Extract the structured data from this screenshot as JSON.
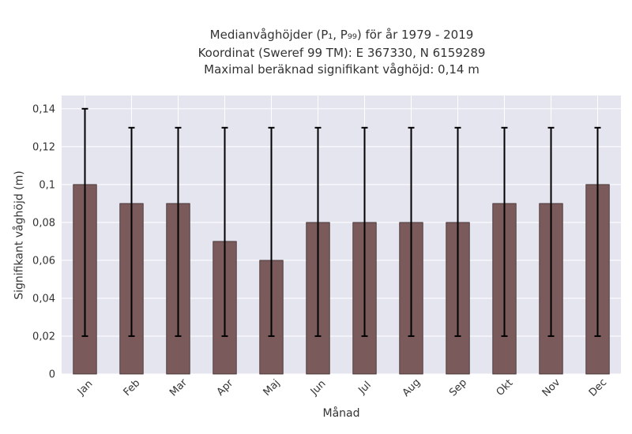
{
  "chart_data": {
    "type": "bar",
    "title_lines": [
      "Medianvåghöjder (P₁, P₉₉) för år 1979 - 2019",
      "Koordinat (Sweref 99 TM): E 367330, N 6159289",
      "Maximal beräknad signifikant våghöjd: 0,14 m"
    ],
    "xlabel": "Månad",
    "ylabel": "Signifikant våghöjd (m)",
    "categories": [
      "Jan",
      "Feb",
      "Mar",
      "Apr",
      "Maj",
      "Jun",
      "Jul",
      "Aug",
      "Sep",
      "Okt",
      "Nov",
      "Dec"
    ],
    "values": [
      0.1,
      0.09,
      0.09,
      0.07,
      0.06,
      0.08,
      0.08,
      0.08,
      0.08,
      0.09,
      0.09,
      0.1
    ],
    "error_low": [
      0.02,
      0.02,
      0.02,
      0.02,
      0.02,
      0.02,
      0.02,
      0.02,
      0.02,
      0.02,
      0.02,
      0.02
    ],
    "error_high": [
      0.14,
      0.13,
      0.13,
      0.13,
      0.13,
      0.13,
      0.13,
      0.13,
      0.13,
      0.13,
      0.13,
      0.13
    ],
    "ylim": [
      0,
      0.147
    ],
    "yticks": [
      0,
      0.02,
      0.04,
      0.06,
      0.08,
      0.1,
      0.12,
      0.14
    ],
    "ytick_labels": [
      "0",
      "0,02",
      "0,04",
      "0,06",
      "0,08",
      "0,1",
      "0,12",
      "0,14"
    ],
    "bar_color": "#7a5a5a",
    "background_color": "#e5e5f0",
    "grid": true
  }
}
